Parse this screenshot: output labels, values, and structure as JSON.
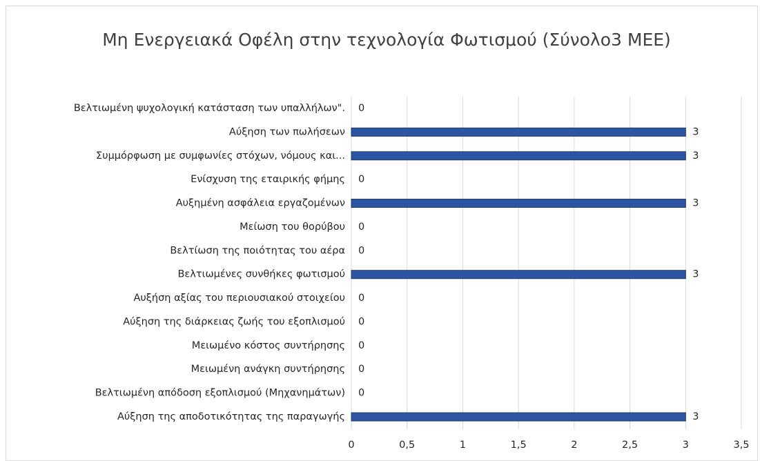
{
  "chart_data": {
    "type": "bar",
    "orientation": "horizontal",
    "title": "Μη Ενεργειακά Οφέλη στην τεχνολογία Φωτισμού (Σύνολο3 ΜΕΕ)",
    "categories": [
      "Βελτιωμένη ψυχολογική κατάσταση των υπαλλήλων\".",
      "Αύξηση των πωλήσεων",
      "Συμμόρφωση με συμφωνίες στόχων, νόμους και...",
      "Ενίσχυση της εταιρικής φήμης",
      "Αυξημένη ασφάλεια εργαζομένων",
      "Μείωση του θορύβου",
      "Βελτίωση της ποιότητας του αέρα",
      "Βελτιωμένες συνθήκες φωτισμού",
      "Αυξήση αξίας του περιουσιακού στοιχείου",
      "Αύξηση της διάρκειας ζωής του εξοπλισμού",
      "Μειωμένο κόστος συντήρησης",
      "Μειωμένη ανάγκη συντήρησης",
      "Βελτιωμένη απόδοση εξοπλισμού (Μηχανημάτων)",
      "Αύξηση της αποδοτικότητας της παραγωγής"
    ],
    "values": [
      0,
      3,
      3,
      0,
      3,
      0,
      0,
      3,
      0,
      0,
      0,
      0,
      0,
      3
    ],
    "color": "#2e54a4",
    "xlim": [
      0,
      3.5
    ],
    "xticks": [
      0,
      {
        "value": 0.5,
        "label": "0,5"
      },
      1,
      {
        "value": 1.5,
        "label": "1,5"
      },
      2,
      {
        "value": 2.5,
        "label": "2,5"
      },
      3,
      {
        "value": 3.5,
        "label": "3,5"
      }
    ],
    "grid": true
  }
}
